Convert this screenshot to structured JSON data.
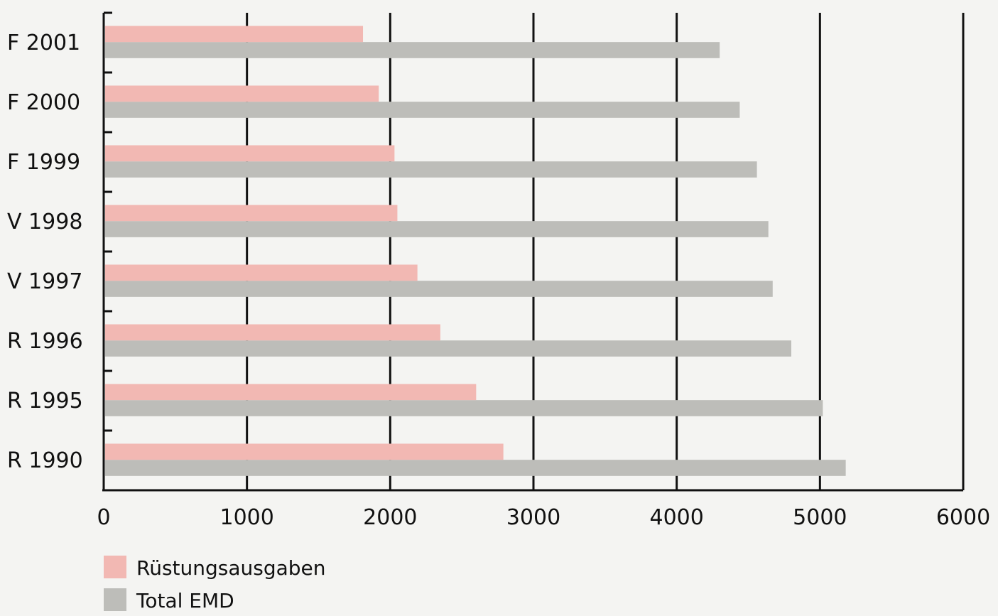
{
  "chart_data": {
    "type": "bar",
    "orientation": "horizontal",
    "title": "",
    "xlabel": "",
    "ylabel": "",
    "categories": [
      "F 2001",
      "F 2000",
      "F 1999",
      "V 1998",
      "V 1997",
      "R 1996",
      "R 1995",
      "R 1990"
    ],
    "series": [
      {
        "name": "Rüstungsausgaben",
        "color": "#f2b8b3",
        "values": [
          1810,
          1920,
          2030,
          2050,
          2190,
          2350,
          2600,
          2790
        ]
      },
      {
        "name": "Total EMD",
        "color": "#bdbdb9",
        "values": [
          4300,
          4440,
          4560,
          4640,
          4670,
          4800,
          5020,
          5180
        ]
      }
    ],
    "xlim": [
      0,
      6000
    ],
    "xticks": [
      "0",
      "1000",
      "2000",
      "3000",
      "4000",
      "5000",
      "6000"
    ],
    "grid": true,
    "legend_position": "bottom-left"
  }
}
